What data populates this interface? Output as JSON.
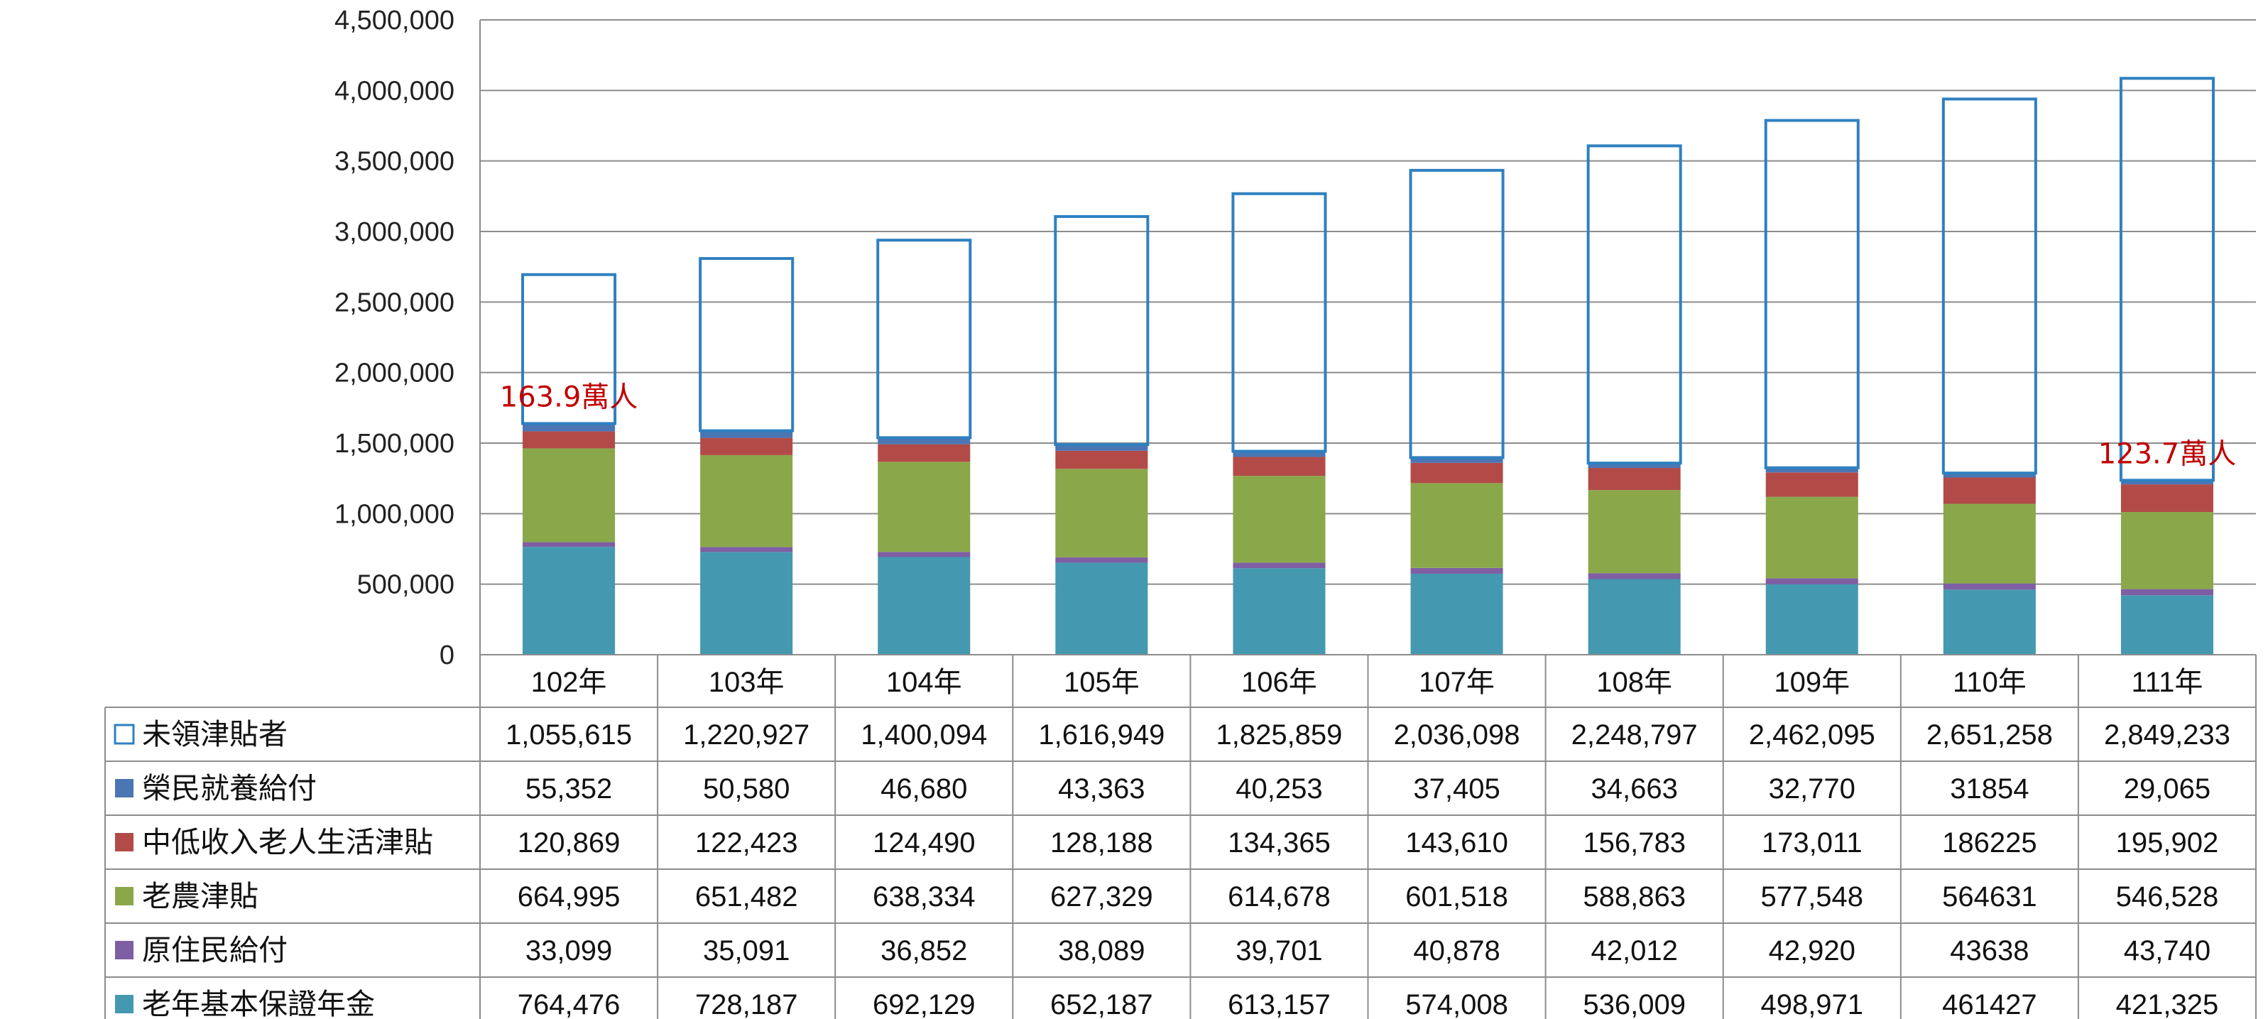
{
  "chart_data": {
    "type": "bar",
    "stacked": true,
    "categories": [
      "102年",
      "103年",
      "104年",
      "105年",
      "106年",
      "107年",
      "108年",
      "109年",
      "110年",
      "111年"
    ],
    "ylim": [
      0,
      4500000
    ],
    "yticks": [
      "0",
      "500,000",
      "1,000,000",
      "1,500,000",
      "2,000,000",
      "2,500,000",
      "3,000,000",
      "3,500,000",
      "4,000,000",
      "4,500,000"
    ],
    "grid": true,
    "series": [
      {
        "name": "老年基本保證年金",
        "color": "#4499B0",
        "filled": true,
        "values": [
          764476,
          728187,
          692129,
          652187,
          613157,
          574008,
          536009,
          498971,
          461427,
          421325
        ],
        "labels": [
          "764,476",
          "728,187",
          "692,129",
          "652,187",
          "613,157",
          "574,008",
          "536,009",
          "498,971",
          "461427",
          "421,325"
        ]
      },
      {
        "name": "原住民給付",
        "color": "#7E5FA3",
        "filled": true,
        "values": [
          33099,
          35091,
          36852,
          38089,
          39701,
          40878,
          42012,
          42920,
          43638,
          43740
        ],
        "labels": [
          "33,099",
          "35,091",
          "36,852",
          "38,089",
          "39,701",
          "40,878",
          "42,012",
          "42,920",
          "43638",
          "43,740"
        ]
      },
      {
        "name": "老農津貼",
        "color": "#8AA84A",
        "filled": true,
        "values": [
          664995,
          651482,
          638334,
          627329,
          614678,
          601518,
          588863,
          577548,
          564631,
          546528
        ],
        "labels": [
          "664,995",
          "651,482",
          "638,334",
          "627,329",
          "614,678",
          "601,518",
          "588,863",
          "577,548",
          "564631",
          "546,528"
        ]
      },
      {
        "name": "中低收入老人生活津貼",
        "color": "#B24B48",
        "filled": true,
        "values": [
          120869,
          122423,
          124490,
          128188,
          134365,
          143610,
          156783,
          173011,
          186225,
          195902
        ],
        "labels": [
          "120,869",
          "122,423",
          "124,490",
          "128,188",
          "134,365",
          "143,610",
          "156,783",
          "173,011",
          "186225",
          "195,902"
        ]
      },
      {
        "name": "榮民就養給付",
        "color": "#4A76B4",
        "filled": true,
        "values": [
          55352,
          50580,
          46680,
          43363,
          40253,
          37405,
          34663,
          32770,
          31854,
          29065
        ],
        "labels": [
          "55,352",
          "50,580",
          "46,680",
          "43,363",
          "40,253",
          "37,405",
          "34,663",
          "32,770",
          "31854",
          "29,065"
        ]
      },
      {
        "name": "未領津貼者",
        "color": "#2F80C0",
        "filled": false,
        "values": [
          1055615,
          1220927,
          1400094,
          1616949,
          1825859,
          2036098,
          2248797,
          2462095,
          2651258,
          2849233
        ],
        "labels": [
          "1,055,615",
          "1,220,927",
          "1,400,094",
          "1,616,949",
          "1,825,859",
          "2,036,098",
          "2,248,797",
          "2,462,095",
          "2,651,258",
          "2,849,233"
        ]
      }
    ],
    "table_row_order": [
      5,
      4,
      3,
      2,
      1,
      0
    ],
    "annotations": [
      {
        "text": "163.9萬人",
        "category_index": 0,
        "color": "#c00000"
      },
      {
        "text": "123.7萬人",
        "category_index": 9,
        "color": "#c00000"
      }
    ]
  }
}
